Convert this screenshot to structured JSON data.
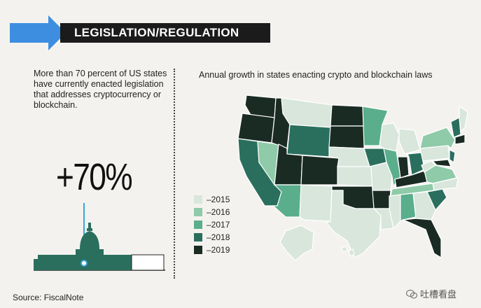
{
  "header": {
    "title": "LEGISLATION/REGULATION"
  },
  "intro": {
    "text": "More than 70 percent of US states have currently enacted legislation that addresses cryptocurrency or blockchain.",
    "stat": "+70%"
  },
  "map": {
    "title": "Annual growth in states enacting crypto and blockchain laws",
    "legend": [
      {
        "label": "–2015",
        "color": "#d8e6dc"
      },
      {
        "label": "–2016",
        "color": "#8fcaa9"
      },
      {
        "label": "–2017",
        "color": "#5aae8c"
      },
      {
        "label": "–2018",
        "color": "#2a6f5e"
      },
      {
        "label": "–2019",
        "color": "#1a2b24"
      }
    ]
  },
  "footer": {
    "source": "Source: FiscalNote"
  },
  "watermark": {
    "text": "吐槽看盘"
  },
  "colors": {
    "accent_arrow": "#3d8ee0",
    "banner": "#1b1b1b",
    "capitol": "#2a6f5e",
    "line": "#3aa5d6"
  }
}
